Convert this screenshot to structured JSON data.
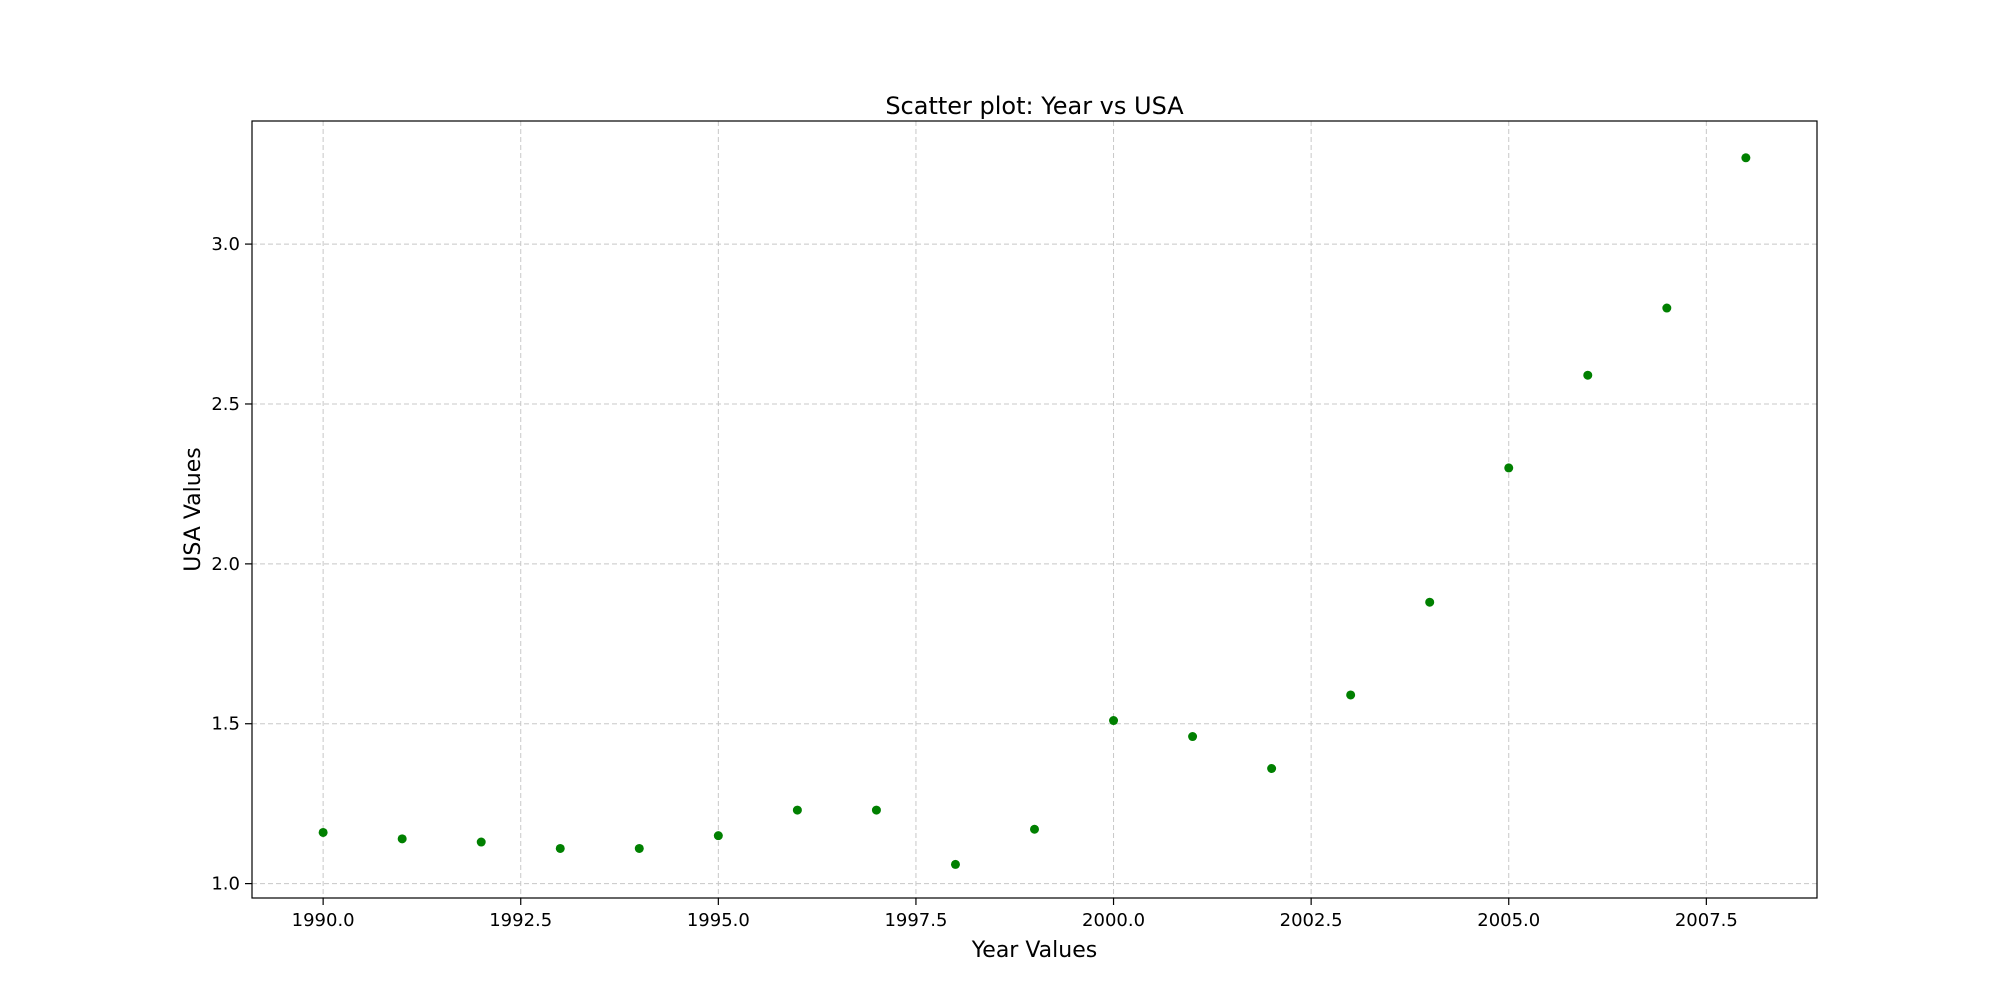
{
  "chart_data": {
    "type": "scatter",
    "title": "Scatter plot: Year vs USA",
    "xlabel": "Year Values",
    "ylabel": "USA Values",
    "xlim": [
      1989.1,
      2008.9
    ],
    "ylim": [
      0.955,
      3.385
    ],
    "xticks": [
      1990.0,
      1992.5,
      1995.0,
      1997.5,
      2000.0,
      2002.5,
      2005.0,
      2007.5
    ],
    "xtick_labels": [
      "1990.0",
      "1992.5",
      "1995.0",
      "1997.5",
      "2000.0",
      "2002.5",
      "2005.0",
      "2007.5"
    ],
    "yticks": [
      1.0,
      1.5,
      2.0,
      2.5,
      3.0
    ],
    "ytick_labels": [
      "1.0",
      "1.5",
      "2.0",
      "2.5",
      "3.0"
    ],
    "grid": true,
    "color": "#008000",
    "points": [
      {
        "x": 1990,
        "y": 1.16
      },
      {
        "x": 1991,
        "y": 1.14
      },
      {
        "x": 1992,
        "y": 1.13
      },
      {
        "x": 1993,
        "y": 1.11
      },
      {
        "x": 1994,
        "y": 1.11
      },
      {
        "x": 1995,
        "y": 1.15
      },
      {
        "x": 1996,
        "y": 1.23
      },
      {
        "x": 1997,
        "y": 1.23
      },
      {
        "x": 1998,
        "y": 1.06
      },
      {
        "x": 1999,
        "y": 1.17
      },
      {
        "x": 2000,
        "y": 1.51
      },
      {
        "x": 2001,
        "y": 1.46
      },
      {
        "x": 2002,
        "y": 1.36
      },
      {
        "x": 2003,
        "y": 1.59
      },
      {
        "x": 2004,
        "y": 1.88
      },
      {
        "x": 2005,
        "y": 2.3
      },
      {
        "x": 2006,
        "y": 2.59
      },
      {
        "x": 2007,
        "y": 2.8
      },
      {
        "x": 2008,
        "y": 3.27
      }
    ]
  }
}
